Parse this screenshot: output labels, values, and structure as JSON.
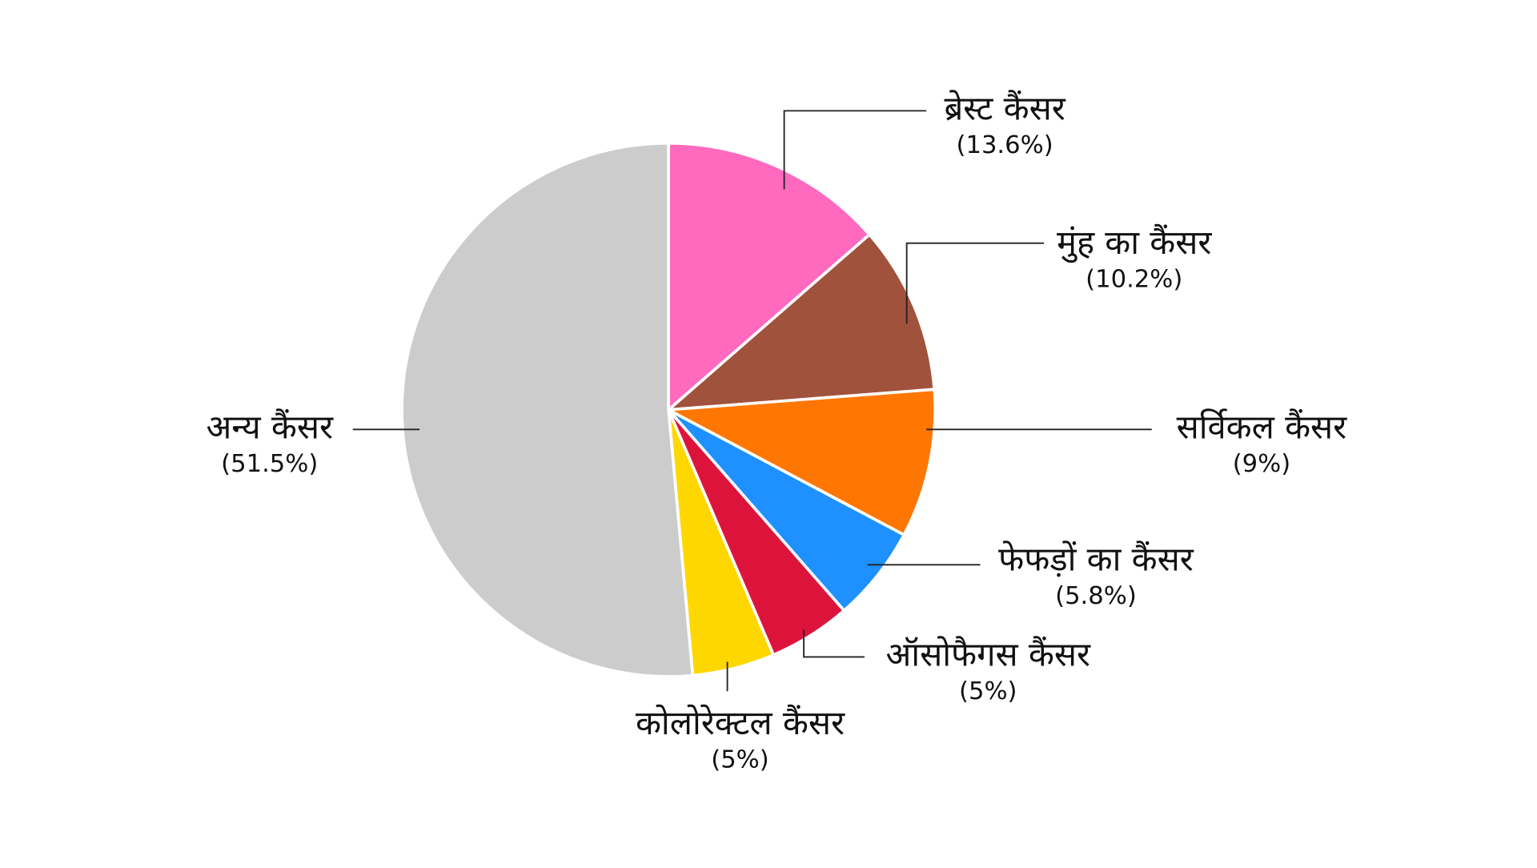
{
  "chart_data": {
    "type": "pie",
    "categories": [
      "ब्रेस्ट कैंसर",
      "मुंह का कैंसर",
      "सर्विकल कैंसर",
      "फेफड़ों का कैंसर",
      "ऑसोफैगस कैंसर",
      "कोलोरेक्टल कैंसर",
      "अन्य कैंसर"
    ],
    "values": [
      13.6,
      10.2,
      9,
      5.8,
      5,
      5,
      51.5
    ],
    "value_labels": [
      "(13.6%)",
      "(10.2%)",
      "(9%)",
      "(5.8%)",
      "(5%)",
      "(5%)",
      "(51.5%)"
    ],
    "colors": [
      "#ff69be",
      "#a0523d",
      "#ff7600",
      "#1e90ff",
      "#dc143c",
      "#ffd700",
      "#cccccc"
    ]
  }
}
